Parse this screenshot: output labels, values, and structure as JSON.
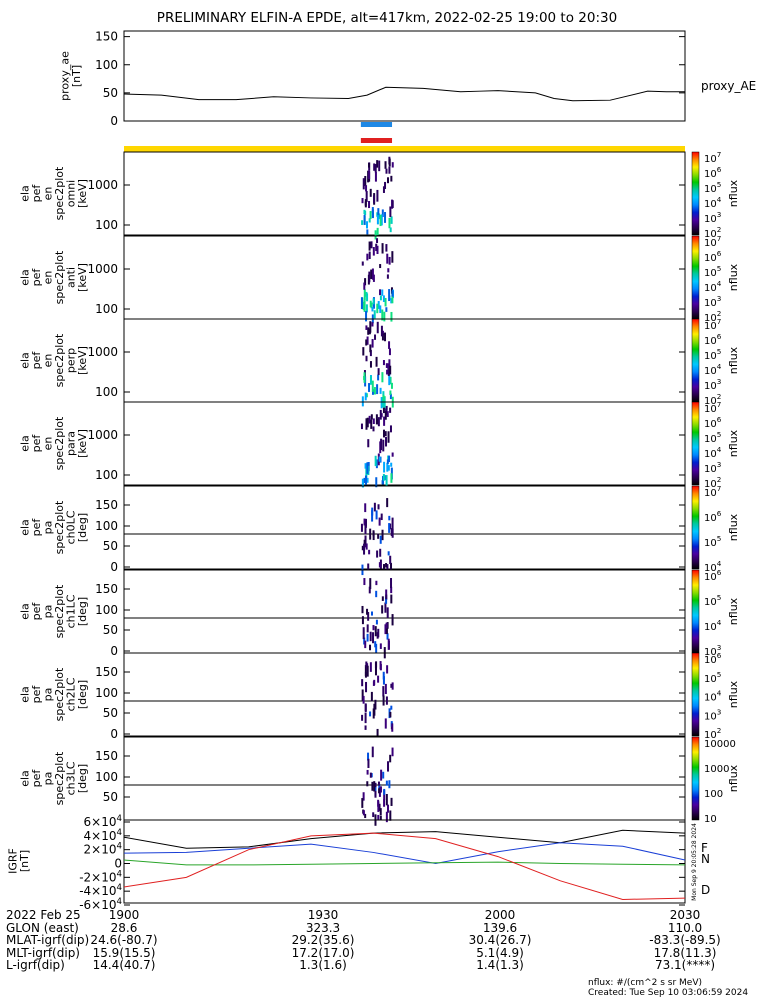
{
  "title": "PRELIMINARY ELFIN-A EPDE, alt=417km, 2022-02-25 19:00 to 20:30",
  "proxy_panel": {
    "ylabel": "proxy_ae\n[nT]",
    "legend": "proxy_AE",
    "yticks": [
      "0",
      "50",
      "100",
      "150"
    ],
    "ylim": [
      0,
      160
    ]
  },
  "spec_panels": [
    {
      "ylabel": "ela\npef\nen\nspec2plot\nomni\n[keV]",
      "yticks": [
        "100",
        "1000"
      ],
      "cbar_label": "nflux",
      "cbar_ticks": [
        "10^7",
        "10^6",
        "10^5",
        "10^4",
        "10^3",
        "10^2"
      ]
    },
    {
      "ylabel": "ela\npef\nen\nspec2plot\nanti\n[keV]",
      "yticks": [
        "100",
        "1000"
      ],
      "cbar_label": "nflux",
      "cbar_ticks": [
        "10^7",
        "10^6",
        "10^5",
        "10^4",
        "10^3",
        "10^2"
      ]
    },
    {
      "ylabel": "ela\npef\nen\nspec2plot\nperp\n[keV]",
      "yticks": [
        "100",
        "1000"
      ],
      "cbar_label": "nflux",
      "cbar_ticks": [
        "10^7",
        "10^6",
        "10^5",
        "10^4",
        "10^3",
        "10^2"
      ]
    },
    {
      "ylabel": "ela\npef\nen\nspec2plot\npara\n[keV]",
      "yticks": [
        "100",
        "1000"
      ],
      "cbar_label": "nflux",
      "cbar_ticks": [
        "10^7",
        "10^6",
        "10^5",
        "10^4",
        "10^3",
        "10^2"
      ]
    },
    {
      "ylabel": "ela\npef\npa\nspec2plot\nch0LC\n[deg]",
      "yticks": [
        "0",
        "50",
        "100",
        "150"
      ],
      "cbar_label": "nflux",
      "cbar_ticks": [
        "10^7",
        "10^6",
        "10^5",
        "10^4"
      ]
    },
    {
      "ylabel": "ela\npef\npa\nspec2plot\nch1LC\n[deg]",
      "yticks": [
        "0",
        "50",
        "100",
        "150"
      ],
      "cbar_label": "nflux",
      "cbar_ticks": [
        "10^6",
        "10^5",
        "10^4",
        "10^3"
      ]
    },
    {
      "ylabel": "ela\npef\npa\nspec2plot\nch2LC\n[deg]",
      "yticks": [
        "0",
        "50",
        "100",
        "150"
      ],
      "cbar_label": "nflux",
      "cbar_ticks": [
        "10^6",
        "10^5",
        "10^4",
        "10^3",
        "10^2"
      ]
    },
    {
      "ylabel": "ela\npef\npa\nspec2plot\nch3LC\n[deg]",
      "yticks": [
        "50",
        "100",
        "150"
      ],
      "cbar_label": "nflux",
      "cbar_ticks": [
        "10000",
        "1000",
        "100",
        "10"
      ]
    }
  ],
  "igrf_panel": {
    "ylabel": "IGRF\n[nT]",
    "yticks": [
      "-6×10^4",
      "-4×10^4",
      "-2×10^4",
      "0",
      "2×10^4",
      "4×10^4",
      "6×10^4"
    ],
    "legend": [
      "F",
      "N",
      "D"
    ]
  },
  "time_axis": {
    "ticks": [
      "1900",
      "1930",
      "2000",
      "2030"
    ]
  },
  "ephemeris_rows": [
    {
      "label": "2022 Feb 25",
      "values": [
        "1900",
        "1930",
        "2000",
        "2030"
      ]
    },
    {
      "label": "GLON (east)",
      "values": [
        "28.6",
        "323.3",
        "139.6",
        "110.0"
      ]
    },
    {
      "label": "MLAT-igrf(dip)",
      "values": [
        "24.6(-80.7)",
        "29.2(35.6)",
        "30.4(26.7)",
        "-83.3(-89.5)"
      ]
    },
    {
      "label": "MLT-igrf(dip)",
      "values": [
        "15.9(15.5)",
        "17.2(17.0)",
        "5.1(4.9)",
        "17.8(11.3)"
      ]
    },
    {
      "label": "L-igrf(dip)",
      "values": [
        "14.4(40.7)",
        "1.3(1.6)",
        "1.4(1.3)",
        "73.1(****)"
      ]
    }
  ],
  "footer": {
    "units": "nflux: #/(cm^2 s sr MeV)",
    "created": "Created: Tue Sep 10 03:06:59 2024",
    "side_stamp": "Mon Sep  9 20:05:28 2024"
  },
  "chart_data": {
    "type": "line",
    "title": "PRELIMINARY ELFIN-A EPDE, alt=417km, 2022-02-25 19:00 to 20:30",
    "x_axis": {
      "label": "",
      "range": [
        "19:00",
        "20:30"
      ],
      "ticks": [
        "1900",
        "1930",
        "2000",
        "2030"
      ]
    },
    "series": [
      {
        "name": "proxy_AE",
        "color": "#000000",
        "x_minutes": [
          0,
          6,
          12,
          18,
          24,
          30,
          36,
          39,
          42,
          48,
          54,
          57,
          60,
          66,
          69,
          72,
          78,
          84,
          87,
          90
        ],
        "values": [
          48,
          46,
          38,
          38,
          43,
          41,
          40,
          46,
          60,
          58,
          52,
          53,
          54,
          50,
          40,
          36,
          37,
          53,
          52,
          52
        ],
        "ylim": [
          0,
          160
        ]
      },
      {
        "name": "IGRF total",
        "color": "#000000",
        "x_minutes": [
          0,
          10,
          20,
          30,
          40,
          50,
          60,
          70,
          80,
          90
        ],
        "values": [
          38000,
          22000,
          24000,
          36000,
          44000,
          46000,
          38000,
          30000,
          48000,
          44000
        ]
      },
      {
        "name": "N",
        "color": "#1a3fd6",
        "x_minutes": [
          0,
          10,
          20,
          30,
          40,
          50,
          60,
          70,
          80,
          90
        ],
        "values": [
          15000,
          16000,
          22000,
          28000,
          16000,
          0,
          17000,
          30000,
          25000,
          5000
        ]
      },
      {
        "name": "F",
        "color": "#2aa52a",
        "x_minutes": [
          0,
          10,
          20,
          30,
          40,
          50,
          60,
          70,
          80,
          90
        ],
        "values": [
          5000,
          -2000,
          -2000,
          -1000,
          0,
          1000,
          2000,
          0,
          -1000,
          -2000
        ]
      },
      {
        "name": "D",
        "color": "#e02020",
        "x_minutes": [
          0,
          10,
          20,
          30,
          40,
          50,
          60,
          70,
          80,
          90
        ],
        "values": [
          -34000,
          -20000,
          20000,
          40000,
          44000,
          36000,
          10000,
          -25000,
          -52000,
          -50000
        ]
      }
    ],
    "spectrogram_burst": {
      "start_minutes": 38,
      "end_minutes": 43
    },
    "science_zone_bars": [
      {
        "color": "#1e88e5",
        "start_minutes": 38,
        "end_minutes": 43
      },
      {
        "color": "#e02020",
        "start_minutes": 38,
        "end_minutes": 43
      }
    ],
    "yellow_bar": {
      "color": "#ffd700",
      "start_minutes": 0,
      "end_minutes": 90
    }
  }
}
